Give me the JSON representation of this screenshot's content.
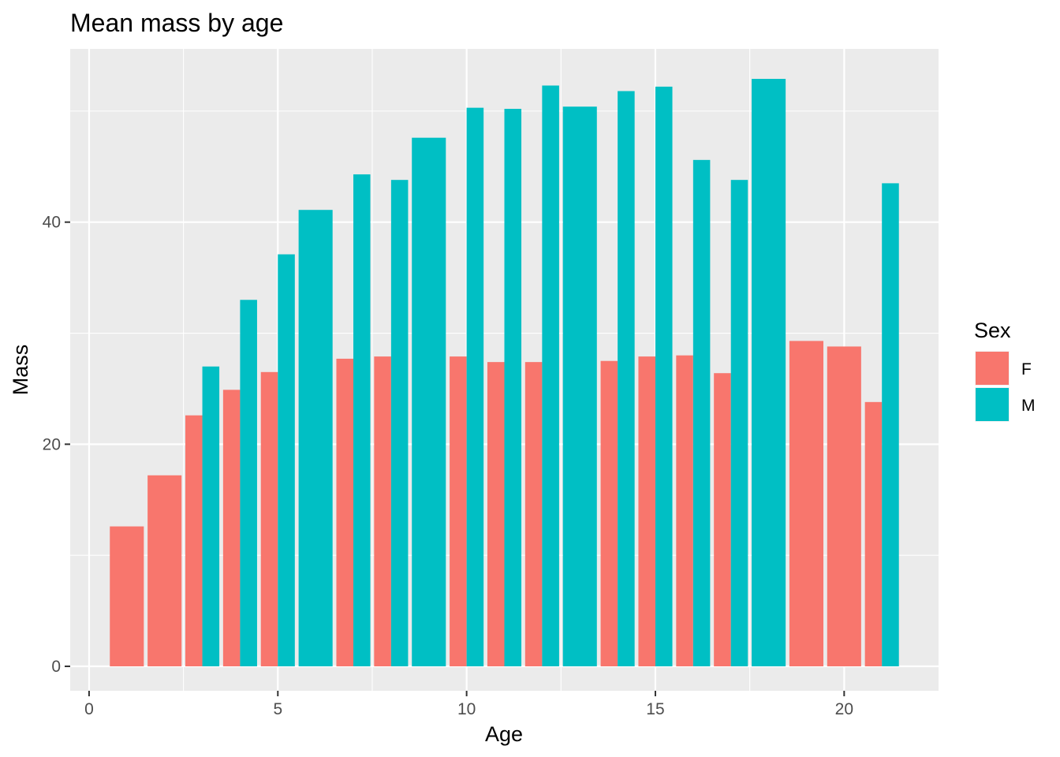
{
  "chart_data": {
    "type": "bar",
    "title": "Mean mass by age",
    "xlabel": "Age",
    "ylabel": "Mass",
    "xlim": [
      -0.5,
      22.5
    ],
    "ylim": [
      -2.2,
      55.6
    ],
    "x_ticks": [
      "0",
      "5",
      "10",
      "15",
      "20"
    ],
    "y_ticks": [
      "0",
      "20",
      "40"
    ],
    "x_tick_values": [
      0,
      5,
      10,
      15,
      20
    ],
    "y_tick_values": [
      0,
      20,
      40
    ],
    "grid": true,
    "legend": {
      "title": "Sex",
      "position": "right",
      "entries": [
        {
          "label": "F",
          "color": "#F8766D"
        },
        {
          "label": "M",
          "color": "#00BFC4"
        }
      ]
    },
    "series": [
      {
        "name": "F",
        "color": "#F8766D",
        "points": [
          {
            "x": 1,
            "y": 12.6
          },
          {
            "x": 2,
            "y": 17.2
          },
          {
            "x": 3,
            "y": 22.6
          },
          {
            "x": 4,
            "y": 24.9
          },
          {
            "x": 5,
            "y": 26.5
          },
          {
            "x": 7,
            "y": 27.7
          },
          {
            "x": 8,
            "y": 27.9
          },
          {
            "x": 10,
            "y": 27.9
          },
          {
            "x": 11,
            "y": 27.4
          },
          {
            "x": 12,
            "y": 27.4
          },
          {
            "x": 14,
            "y": 27.5
          },
          {
            "x": 15,
            "y": 27.9
          },
          {
            "x": 16,
            "y": 28.0
          },
          {
            "x": 17,
            "y": 26.4
          },
          {
            "x": 19,
            "y": 29.3
          },
          {
            "x": 20,
            "y": 28.8
          },
          {
            "x": 21,
            "y": 23.8
          }
        ]
      },
      {
        "name": "M",
        "color": "#00BFC4",
        "points": [
          {
            "x": 3,
            "y": 27.0
          },
          {
            "x": 4,
            "y": 33.0
          },
          {
            "x": 5,
            "y": 37.1
          },
          {
            "x": 6,
            "y": 41.1
          },
          {
            "x": 7,
            "y": 44.3
          },
          {
            "x": 8,
            "y": 43.8
          },
          {
            "x": 9,
            "y": 47.6
          },
          {
            "x": 10,
            "y": 50.3
          },
          {
            "x": 11,
            "y": 50.2
          },
          {
            "x": 12,
            "y": 52.3
          },
          {
            "x": 13,
            "y": 50.4
          },
          {
            "x": 14,
            "y": 51.8
          },
          {
            "x": 15,
            "y": 52.2
          },
          {
            "x": 16,
            "y": 45.6
          },
          {
            "x": 17,
            "y": 43.8
          },
          {
            "x": 18,
            "y": 52.9
          },
          {
            "x": 21,
            "y": 43.5
          }
        ]
      }
    ]
  }
}
